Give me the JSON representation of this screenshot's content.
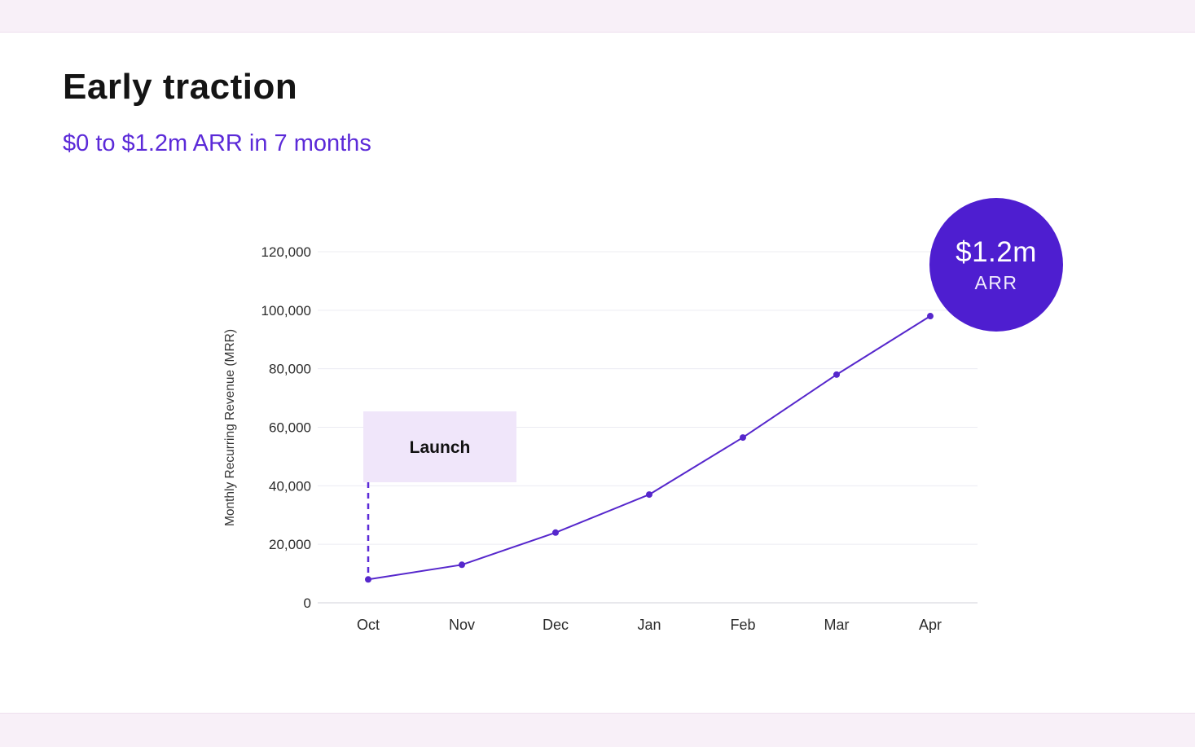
{
  "page": {
    "title": "Early traction",
    "subtitle": "$0 to $1.2m ARR in 7 months"
  },
  "badge": {
    "value": "$1.2m",
    "label": "ARR"
  },
  "annotation": {
    "launch_label": "Launch"
  },
  "colors": {
    "accent": "#5b2ad8",
    "line": "#5627cc",
    "point": "#5627cc",
    "badge": "#4e1ed0",
    "launch_box": "#f0e6fa",
    "grid": "#ececf2",
    "axis": "#d9d9e0",
    "tick_text": "#2b2b2b"
  },
  "chart_data": {
    "type": "line",
    "categories": [
      "Oct",
      "Nov",
      "Dec",
      "Jan",
      "Feb",
      "Mar",
      "Apr"
    ],
    "series": [
      {
        "name": "MRR",
        "values": [
          8000,
          13000,
          24000,
          37000,
          56500,
          78000,
          98000
        ]
      }
    ],
    "title": "",
    "xlabel": "",
    "ylabel": "Monthly Recurring Revenue (MRR)",
    "ylim": [
      0,
      120000
    ],
    "ytick_step": 20000,
    "ytick_labels": [
      "0",
      "20,000",
      "40,000",
      "60,000",
      "80,000",
      "100,000",
      "120,000"
    ],
    "grid": true,
    "legend": false,
    "annotations": [
      {
        "type": "label-box",
        "text": "Launch",
        "near_category": "Oct"
      },
      {
        "type": "dashed-vline",
        "at_category": "Oct"
      }
    ]
  }
}
